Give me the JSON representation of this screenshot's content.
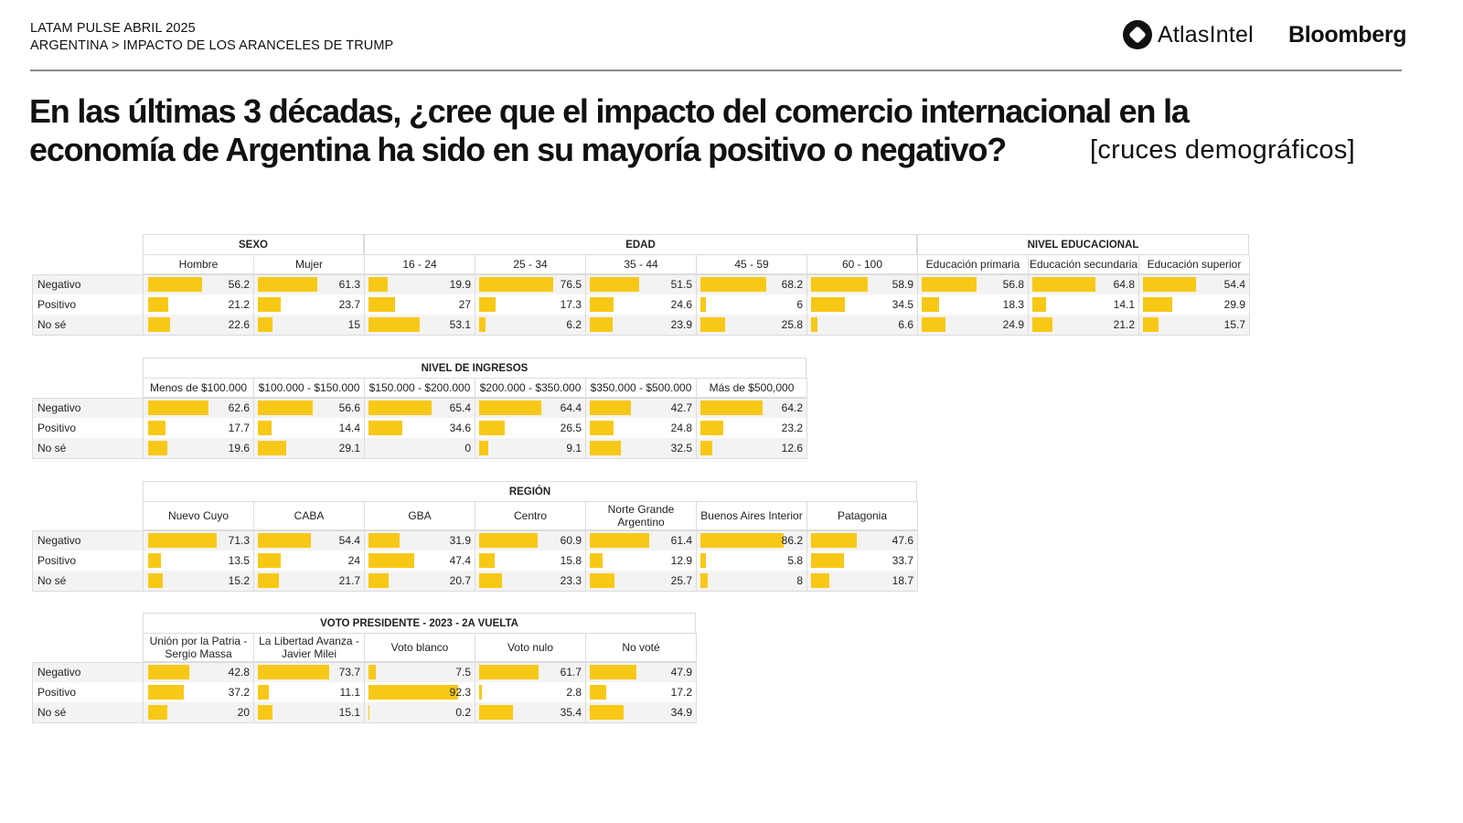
{
  "header": {
    "line1": "LATAM PULSE ABRIL 2025",
    "line2": "ARGENTINA > IMPACTO DE LOS ARANCELES DE TRUMP",
    "logo_atlas": "AtlasIntel",
    "logo_bloomberg": "Bloomberg"
  },
  "title": "En las últimas 3 décadas, ¿cree que el impacto del comercio internacional en la economía de Argentina ha sido en su mayoría positivo o negativo?",
  "subtitle": "[cruces demográficos]",
  "colors": {
    "bar": "#f8c817",
    "alt_row": "#f3f3f3",
    "border": "#dcdcdc"
  },
  "chart_data": {
    "type": "table",
    "title": "En las últimas 3 décadas, ¿cree que el impacto del comercio internacional en la economía de Argentina ha sido en su mayoría positivo o negativo?",
    "row_labels": [
      "Negativo",
      "Positivo",
      "No sé"
    ],
    "scale_max": 100,
    "tables": [
      {
        "groups": [
          {
            "name": "SEXO",
            "columns": [
              {
                "label": "Hombre",
                "values": [
                  56.2,
                  21.2,
                  22.6
                ]
              },
              {
                "label": "Mujer",
                "values": [
                  61.3,
                  23.7,
                  15
                ]
              }
            ]
          },
          {
            "name": "EDAD",
            "columns": [
              {
                "label": "16 - 24",
                "values": [
                  19.9,
                  27,
                  53.1
                ]
              },
              {
                "label": "25 - 34",
                "values": [
                  76.5,
                  17.3,
                  6.2
                ]
              },
              {
                "label": "35 - 44",
                "values": [
                  51.5,
                  24.6,
                  23.9
                ]
              },
              {
                "label": "45 - 59",
                "values": [
                  68.2,
                  6,
                  25.8
                ]
              },
              {
                "label": "60 - 100",
                "values": [
                  58.9,
                  34.5,
                  6.6
                ]
              }
            ]
          },
          {
            "name": "NIVEL EDUCACIONAL",
            "columns": [
              {
                "label": "Educación primaria",
                "values": [
                  56.8,
                  18.3,
                  24.9
                ]
              },
              {
                "label": "Educación secundaria",
                "values": [
                  64.8,
                  14.1,
                  21.2
                ]
              },
              {
                "label": "Educación superior",
                "values": [
                  54.4,
                  29.9,
                  15.7
                ]
              }
            ]
          }
        ]
      },
      {
        "groups": [
          {
            "name": "NIVEL DE INGRESOS",
            "columns": [
              {
                "label": "Menos de $100.000",
                "values": [
                  62.6,
                  17.7,
                  19.6
                ]
              },
              {
                "label": "$100.000 - $150.000",
                "values": [
                  56.6,
                  14.4,
                  29.1
                ]
              },
              {
                "label": "$150.000 - $200.000",
                "values": [
                  65.4,
                  34.6,
                  0
                ]
              },
              {
                "label": "$200.000 - $350.000",
                "values": [
                  64.4,
                  26.5,
                  9.1
                ]
              },
              {
                "label": "$350.000 - $500.000",
                "values": [
                  42.7,
                  24.8,
                  32.5
                ]
              },
              {
                "label": "Más de $500,000",
                "values": [
                  64.2,
                  23.2,
                  12.6
                ]
              }
            ]
          }
        ]
      },
      {
        "groups": [
          {
            "name": "REGIÓN",
            "columns": [
              {
                "label": "Nuevo Cuyo",
                "values": [
                  71.3,
                  13.5,
                  15.2
                ]
              },
              {
                "label": "CABA",
                "values": [
                  54.4,
                  24,
                  21.7
                ]
              },
              {
                "label": "GBA",
                "values": [
                  31.9,
                  47.4,
                  20.7
                ]
              },
              {
                "label": "Centro",
                "values": [
                  60.9,
                  15.8,
                  23.3
                ]
              },
              {
                "label": "Norte Grande Argentino",
                "values": [
                  61.4,
                  12.9,
                  25.7
                ]
              },
              {
                "label": "Buenos Aires Interior",
                "values": [
                  86.2,
                  5.8,
                  8
                ]
              },
              {
                "label": "Patagonia",
                "values": [
                  47.6,
                  33.7,
                  18.7
                ]
              }
            ]
          }
        ]
      },
      {
        "groups": [
          {
            "name": "VOTO PRESIDENTE - 2023 - 2A VUELTA",
            "columns": [
              {
                "label": "Unión por la Patria - Sergio Massa",
                "values": [
                  42.8,
                  37.2,
                  20
                ]
              },
              {
                "label": "La Libertad Avanza - Javier Milei",
                "values": [
                  73.7,
                  11.1,
                  15.1
                ]
              },
              {
                "label": "Voto blanco",
                "values": [
                  7.5,
                  92.3,
                  0.2
                ]
              },
              {
                "label": "Voto nulo",
                "values": [
                  61.7,
                  2.8,
                  35.4
                ]
              },
              {
                "label": "No voté",
                "values": [
                  47.9,
                  17.2,
                  34.9
                ]
              }
            ]
          }
        ]
      }
    ]
  }
}
